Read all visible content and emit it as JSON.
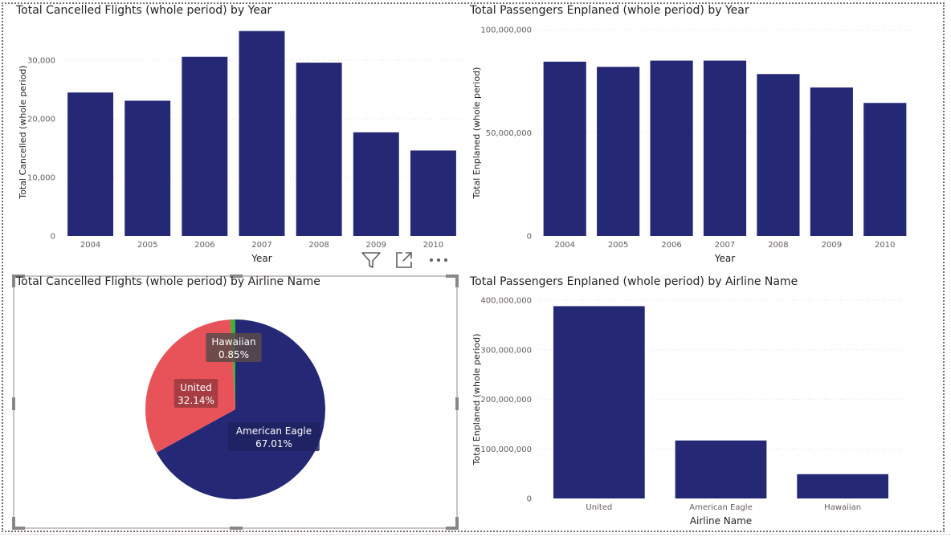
{
  "visual_header": {
    "icons": [
      "filter-icon",
      "focus-mode-icon",
      "more-options-icon"
    ]
  },
  "colors": {
    "bar": "#252874",
    "united": "#E8535A",
    "hawaiian": "#3DB035",
    "american_eagle": "#252874"
  },
  "chart_data": [
    {
      "type": "bar",
      "title": "Total Cancelled Flights (whole period) by Year",
      "xlabel": "Year",
      "ylabel": "Total Cancelled (whole period)",
      "categories": [
        "2004",
        "2005",
        "2006",
        "2007",
        "2008",
        "2009",
        "2010"
      ],
      "values": [
        24500,
        23100,
        30600,
        35000,
        29600,
        17700,
        14600
      ],
      "yticks": [
        0,
        10000,
        20000,
        30000
      ],
      "ytick_labels": [
        "0",
        "10,000",
        "20,000",
        "30,000"
      ],
      "ylim": [
        0,
        35500
      ],
      "grid": true
    },
    {
      "type": "bar",
      "title": "Total Passengers Enplaned (whole period) by Year",
      "xlabel": "Year",
      "ylabel": "Total Enplaned (whole period)",
      "categories": [
        "2004",
        "2005",
        "2006",
        "2007",
        "2008",
        "2009",
        "2010"
      ],
      "values": [
        84500000,
        82000000,
        85000000,
        85000000,
        78500000,
        72000000,
        64500000
      ],
      "yticks": [
        0,
        50000000,
        100000000
      ],
      "ytick_labels": [
        "0",
        "50,000,000",
        "100,000,000"
      ],
      "ylim": [
        0,
        100000000
      ],
      "grid": true
    },
    {
      "type": "pie",
      "title": "Total Cancelled Flights (whole period) by Airline Name",
      "slices": [
        {
          "label": "American Eagle",
          "percent": 67.01,
          "percent_label": "67.01%"
        },
        {
          "label": "United",
          "percent": 32.14,
          "percent_label": "32.14%"
        },
        {
          "label": "Hawaiian",
          "percent": 0.85,
          "percent_label": "0.85%"
        }
      ]
    },
    {
      "type": "bar",
      "title": "Total Passengers Enplaned (whole period) by Airline Name",
      "xlabel": "Airline Name",
      "ylabel": "Total Enplaned (whole period)",
      "categories": [
        "United",
        "American Eagle",
        "Hawaiian"
      ],
      "values": [
        388000000,
        117000000,
        49000000
      ],
      "yticks": [
        0,
        100000000,
        200000000,
        300000000,
        400000000
      ],
      "ytick_labels": [
        "0",
        "100,000,000",
        "200,000,000",
        "300,000,000",
        "400,000,000"
      ],
      "ylim": [
        0,
        400000000
      ],
      "grid": true
    }
  ]
}
